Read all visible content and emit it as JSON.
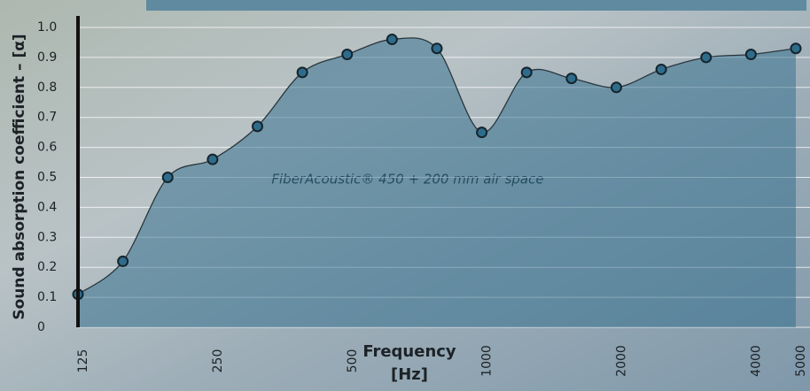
{
  "chart_data": {
    "type": "area",
    "ylabel": "Sound absorption coefficient – [α]",
    "xlabel": [
      "Frequency",
      "[Hz]"
    ],
    "annotation": "FiberAcoustic® 450 + 200 mm air space",
    "categories": [
      "125",
      null,
      null,
      "250",
      null,
      null,
      "500",
      null,
      null,
      "1000",
      null,
      null,
      "2000",
      null,
      null,
      "4000",
      "5000"
    ],
    "values": [
      0.11,
      0.22,
      0.5,
      0.56,
      0.67,
      0.85,
      0.91,
      0.96,
      0.93,
      0.65,
      0.85,
      0.83,
      0.8,
      0.86,
      0.9,
      0.91,
      0.93
    ],
    "ylim": [
      0,
      1
    ],
    "yticks": [
      0,
      0.1,
      0.2,
      0.3,
      0.4,
      0.5,
      0.6,
      0.7,
      0.8,
      0.9,
      {
        "value": 1,
        "label": "1.0"
      }
    ],
    "grid": true,
    "color": "#2e6c8c"
  }
}
